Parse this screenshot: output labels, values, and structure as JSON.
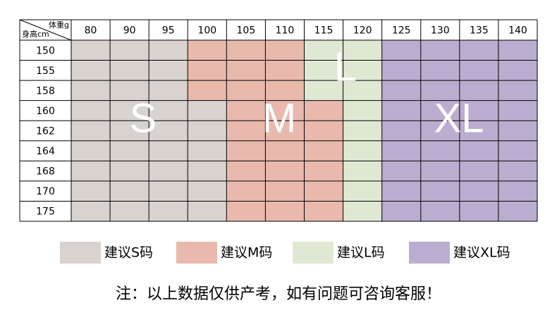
{
  "table": {
    "corner_top": "体重g",
    "corner_bottom": "身高cm",
    "columns": [
      "80",
      "90",
      "95",
      "100",
      "105",
      "110",
      "115",
      "120",
      "125",
      "130",
      "135",
      "140"
    ],
    "rows": [
      {
        "label": "150",
        "cells": [
          "S",
          "S",
          "S",
          "M",
          "M",
          "M",
          "L",
          "L",
          "XL",
          "XL",
          "XL",
          "XL"
        ]
      },
      {
        "label": "155",
        "cells": [
          "S",
          "S",
          "S",
          "M",
          "M",
          "M",
          "L",
          "L",
          "XL",
          "XL",
          "XL",
          "XL"
        ]
      },
      {
        "label": "158",
        "cells": [
          "S",
          "S",
          "S",
          "M",
          "M",
          "M",
          "L",
          "L",
          "XL",
          "XL",
          "XL",
          "XL"
        ]
      },
      {
        "label": "160",
        "cells": [
          "S",
          "S",
          "S",
          "S",
          "M",
          "M",
          "M",
          "L",
          "XL",
          "XL",
          "XL",
          "XL"
        ]
      },
      {
        "label": "162",
        "cells": [
          "S",
          "S",
          "S",
          "S",
          "M",
          "M",
          "M",
          "L",
          "XL",
          "XL",
          "XL",
          "XL"
        ]
      },
      {
        "label": "164",
        "cells": [
          "S",
          "S",
          "S",
          "S",
          "M",
          "M",
          "M",
          "L",
          "XL",
          "XL",
          "XL",
          "XL"
        ]
      },
      {
        "label": "168",
        "cells": [
          "S",
          "S",
          "S",
          "S",
          "M",
          "M",
          "M",
          "L",
          "XL",
          "XL",
          "XL",
          "XL"
        ]
      },
      {
        "label": "170",
        "cells": [
          "S",
          "S",
          "S",
          "S",
          "M",
          "M",
          "M",
          "L",
          "XL",
          "XL",
          "XL",
          "XL"
        ]
      },
      {
        "label": "175",
        "cells": [
          "S",
          "S",
          "S",
          "S",
          "M",
          "M",
          "M",
          "L",
          "XL",
          "XL",
          "XL",
          "XL"
        ]
      }
    ]
  },
  "sizes": [
    {
      "letter": "S",
      "legend": "建议S码",
      "color": "#d8d3cf"
    },
    {
      "letter": "M",
      "legend": "建议M码",
      "color": "#e8b9ac"
    },
    {
      "letter": "L",
      "legend": "建议L码",
      "color": "#dfe8d3"
    },
    {
      "letter": "XL",
      "legend": "建议XL码",
      "color": "#bbadd0"
    }
  ],
  "note": "注：以上数据仅供产考，如有问题可咨询客服！"
}
